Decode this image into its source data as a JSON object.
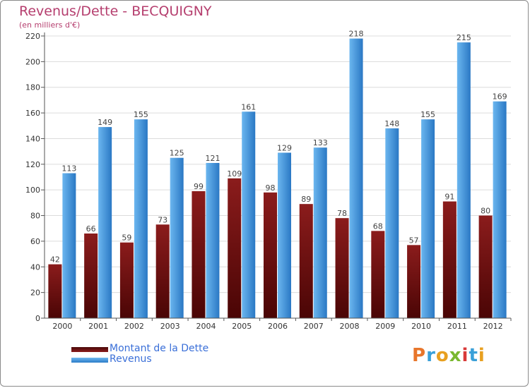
{
  "header": {
    "title": "Revenus/Dette - BECQUIGNY",
    "subtitle": "(en milliers d'€)"
  },
  "legend": {
    "debt_label": "Montant de la Dette",
    "revenue_label": "Revenus"
  },
  "logo": {
    "text": "Proxiti",
    "letters": [
      "P",
      "r",
      "o",
      "x",
      "i",
      "t",
      "i"
    ],
    "letter_colors": [
      "#e8762b",
      "#3aa0d8",
      "#e8a020",
      "#7ab830",
      "#d83a3a",
      "#3aa0d8",
      "#e8a020"
    ]
  },
  "colors": {
    "debt_top": "#8b1c1c",
    "debt_bottom": "#4a0505",
    "revenue_top": "#6bb6ef",
    "revenue_bottom": "#2a78c4",
    "title": "#b53e6e",
    "legend_text": "#3a6fd8"
  },
  "chart_data": {
    "type": "bar",
    "title": "Revenus/Dette - BECQUIGNY",
    "ylabel": "(en milliers d'€)",
    "xlabel": "",
    "ylim": [
      0,
      220
    ],
    "yticks": [
      0,
      20,
      40,
      60,
      80,
      100,
      120,
      140,
      160,
      180,
      200,
      220
    ],
    "categories": [
      "2000",
      "2001",
      "2002",
      "2003",
      "2004",
      "2005",
      "2006",
      "2007",
      "2008",
      "2009",
      "2010",
      "2011",
      "2012"
    ],
    "series": [
      {
        "name": "Montant de la Dette",
        "values": [
          42,
          66,
          59,
          73,
          99,
          109,
          98,
          89,
          78,
          68,
          57,
          91,
          80
        ]
      },
      {
        "name": "Revenus",
        "values": [
          113,
          149,
          155,
          125,
          121,
          161,
          129,
          133,
          218,
          148,
          155,
          215,
          169
        ]
      }
    ],
    "grid": true
  }
}
